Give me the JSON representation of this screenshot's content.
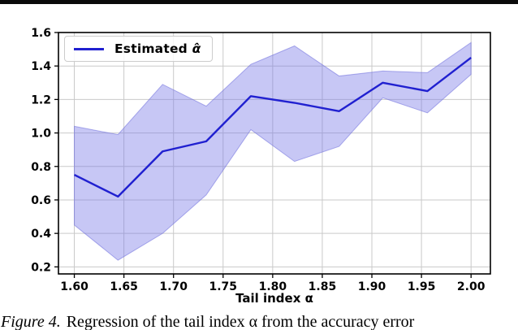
{
  "page": {
    "top_rule_color": "#0a0a0a"
  },
  "legend": {
    "prefix": "Estimated ",
    "math": "α̂"
  },
  "caption": {
    "label": "Figure 4.",
    "text": "Regression of the tail index α from the accuracy error"
  },
  "chart_data": {
    "type": "line",
    "title": "",
    "xlabel": "Tail index α",
    "ylabel": "",
    "grid": true,
    "legend_position": "upper left",
    "legend_entries": [
      {
        "label": "Estimated α̂",
        "color": "#2020d0"
      }
    ],
    "xlim": [
      1.584,
      2.0195
    ],
    "ylim": [
      0.158,
      1.6
    ],
    "xticks": [
      1.6,
      1.65,
      1.7,
      1.75,
      1.8,
      1.85,
      1.9,
      1.95,
      2.0
    ],
    "xtick_labels": [
      "1.60",
      "1.65",
      "1.70",
      "1.75",
      "1.80",
      "1.85",
      "1.90",
      "1.95",
      "2.00"
    ],
    "yticks": [
      0.2,
      0.4,
      0.6,
      0.8,
      1.0,
      1.2,
      1.4,
      1.6
    ],
    "ytick_labels": [
      "0.2",
      "0.4",
      "0.6",
      "0.8",
      "1.0",
      "1.2",
      "1.4",
      "1.6"
    ],
    "x": [
      1.6,
      1.644,
      1.689,
      1.733,
      1.778,
      1.822,
      1.867,
      1.911,
      1.956,
      2.0
    ],
    "series": [
      {
        "name": "Estimated α̂",
        "values": [
          0.75,
          0.62,
          0.89,
          0.95,
          1.22,
          1.18,
          1.13,
          1.3,
          1.25,
          1.45
        ]
      }
    ],
    "band": {
      "name": "confidence interval",
      "upper": [
        1.04,
        0.99,
        1.29,
        1.16,
        1.41,
        1.52,
        1.34,
        1.37,
        1.36,
        1.54
      ],
      "lower": [
        0.45,
        0.24,
        0.4,
        0.63,
        1.02,
        0.83,
        0.92,
        1.21,
        1.12,
        1.35
      ]
    },
    "colors": {
      "line": "#2020d0",
      "band_fill": "#7a7ae6",
      "grid": "#c9c9c9",
      "frame": "#000000",
      "text": "#000000"
    }
  }
}
